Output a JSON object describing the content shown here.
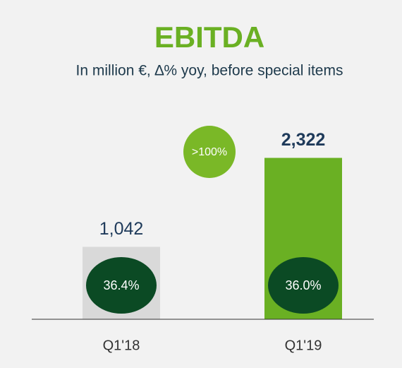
{
  "chart_data": {
    "type": "bar",
    "title": "EBITDA",
    "subtitle": "In million €, ∆% yoy, before special items",
    "categories": [
      "Q1'18",
      "Q1'19"
    ],
    "values": [
      1042,
      2322
    ],
    "value_labels": [
      "1,042",
      "2,322"
    ],
    "colors": [
      "#d9d9d9",
      "#6ab023"
    ],
    "margins": [
      "36.4%",
      "36.0%"
    ],
    "badge": ">100%",
    "ylim": [
      0,
      2500
    ]
  }
}
